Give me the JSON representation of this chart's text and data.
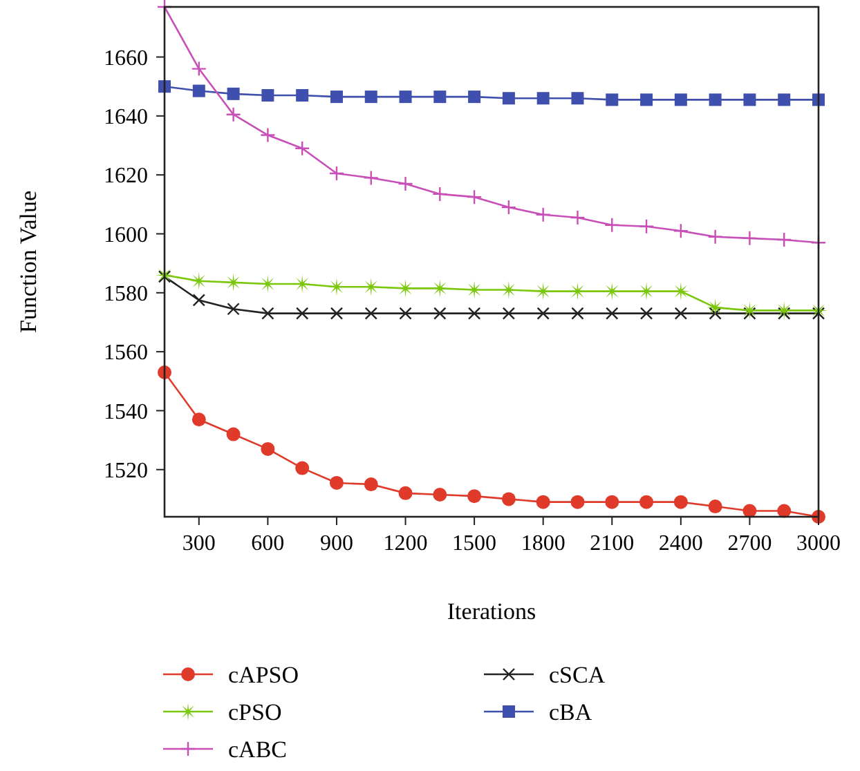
{
  "chart_data": {
    "type": "line",
    "xlabel": "Iterations",
    "ylabel": "Function Value",
    "x": [
      150,
      300,
      450,
      600,
      750,
      900,
      1050,
      1200,
      1350,
      1500,
      1650,
      1800,
      1950,
      2100,
      2250,
      2400,
      2550,
      2700,
      2850,
      3000
    ],
    "xlim": [
      150,
      3000
    ],
    "xticks": [
      300,
      600,
      900,
      1200,
      1500,
      1800,
      2100,
      2400,
      2700,
      3000
    ],
    "ylim": [
      1504,
      1677
    ],
    "yticks": [
      1520,
      1540,
      1560,
      1580,
      1600,
      1620,
      1640,
      1660
    ],
    "grid": false,
    "legend": "bottom",
    "series": [
      {
        "name": "cAPSO",
        "color": "#e03a2a",
        "marker": "circle",
        "values": [
          1553,
          1537,
          1532,
          1527,
          1520.5,
          1515.5,
          1515,
          1512,
          1511.5,
          1511,
          1510,
          1509,
          1509,
          1509,
          1509,
          1509,
          1507.5,
          1506,
          1506,
          1504
        ]
      },
      {
        "name": "cPSO",
        "color": "#7ac70c",
        "marker": "star",
        "values": [
          1586,
          1584,
          1583.5,
          1583,
          1583,
          1582,
          1582,
          1581.5,
          1581.5,
          1581,
          1581,
          1580.5,
          1580.5,
          1580.5,
          1580.5,
          1580.5,
          1575,
          1574,
          1574,
          1574
        ]
      },
      {
        "name": "cABC",
        "color": "#c84fb8",
        "marker": "plus",
        "values": [
          1677,
          1656,
          1640.5,
          1633.5,
          1629,
          1620.5,
          1619,
          1617,
          1613.5,
          1612.5,
          1609,
          1606.5,
          1605.5,
          1603,
          1602.5,
          1601,
          1599,
          1598.5,
          1598,
          1597
        ]
      },
      {
        "name": "cSCA",
        "color": "#222222",
        "marker": "cross",
        "values": [
          1585.5,
          1577.5,
          1574.5,
          1573,
          1573,
          1573,
          1573,
          1573,
          1573,
          1573,
          1573,
          1573,
          1573,
          1573,
          1573,
          1573,
          1573,
          1573,
          1573,
          1573
        ]
      },
      {
        "name": "cBA",
        "color": "#3f4fad",
        "marker": "square",
        "values": [
          1650,
          1648.5,
          1647.5,
          1647,
          1647,
          1646.5,
          1646.5,
          1646.5,
          1646.5,
          1646.5,
          1646,
          1646,
          1646,
          1645.5,
          1645.5,
          1645.5,
          1645.5,
          1645.5,
          1645.5,
          1645.5
        ]
      }
    ]
  }
}
